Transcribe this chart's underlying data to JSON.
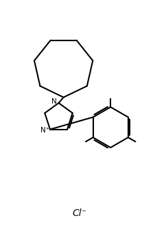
{
  "background_color": "#ffffff",
  "line_color": "#000000",
  "line_width": 1.5,
  "fig_width": 2.42,
  "fig_height": 3.5,
  "dpi": 100,
  "cl_label": "Cl⁻",
  "n_label": "N",
  "nplus_label": "N⁺"
}
